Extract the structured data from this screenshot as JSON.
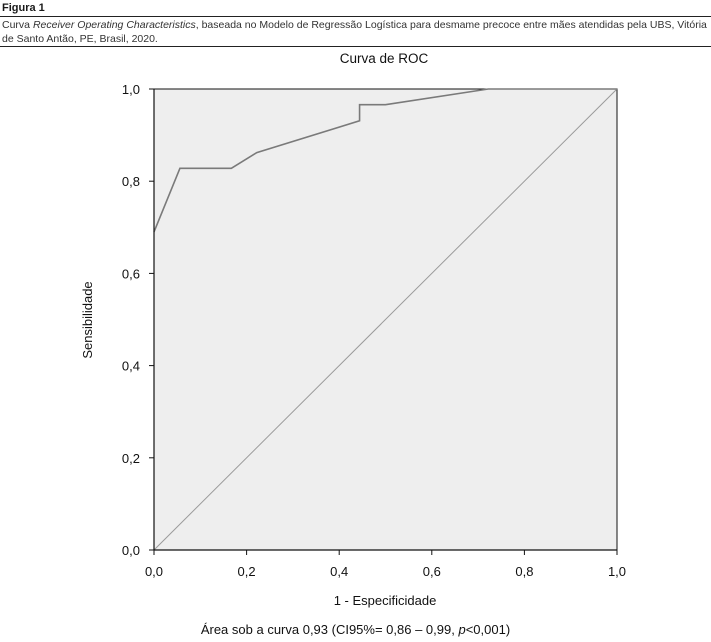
{
  "figure": {
    "label": "Figura 1",
    "caption_prefix": "Curva ",
    "caption_italic": "Receiver Operating Characteristics",
    "caption_suffix": ", baseada no Modelo de Regressão Logística para desmame precoce entre mães atendidas pela UBS, Vitória de Santo Antão, PE, Brasil, 2020."
  },
  "chart_data": {
    "type": "line",
    "title": "Curva de ROC",
    "xlabel": "1 - Especificidade",
    "ylabel": "Sensibilidade",
    "xlim": [
      0,
      1
    ],
    "ylim": [
      0,
      1
    ],
    "x_ticks": [
      "0,0",
      "0,2",
      "0,4",
      "0,6",
      "0,8",
      "1,0"
    ],
    "y_ticks": [
      "0,0",
      "0,2",
      "0,4",
      "0,6",
      "0,8",
      "1,0"
    ],
    "grid": false,
    "colors": {
      "plot_bg": "#eeeeee",
      "roc_line": "#7a7a7a",
      "reference_line": "#9a9a9a",
      "axis": "#111111"
    },
    "series": [
      {
        "x": [
          0,
          0.056,
          0.167,
          0.222,
          0.444,
          0.444,
          0.5,
          0.722,
          1.0
        ],
        "y": [
          0.69,
          0.828,
          0.828,
          0.862,
          0.931,
          0.966,
          0.966,
          1.0,
          1.0
        ]
      },
      {
        "x": [
          0,
          1
        ],
        "y": [
          0,
          1
        ]
      }
    ]
  },
  "footer": {
    "auc_prefix": "Área sob a curva 0,93 (CI95%= 0,86 – 0,99, ",
    "p_symbol": "p",
    "auc_suffix": "<0,001)"
  }
}
